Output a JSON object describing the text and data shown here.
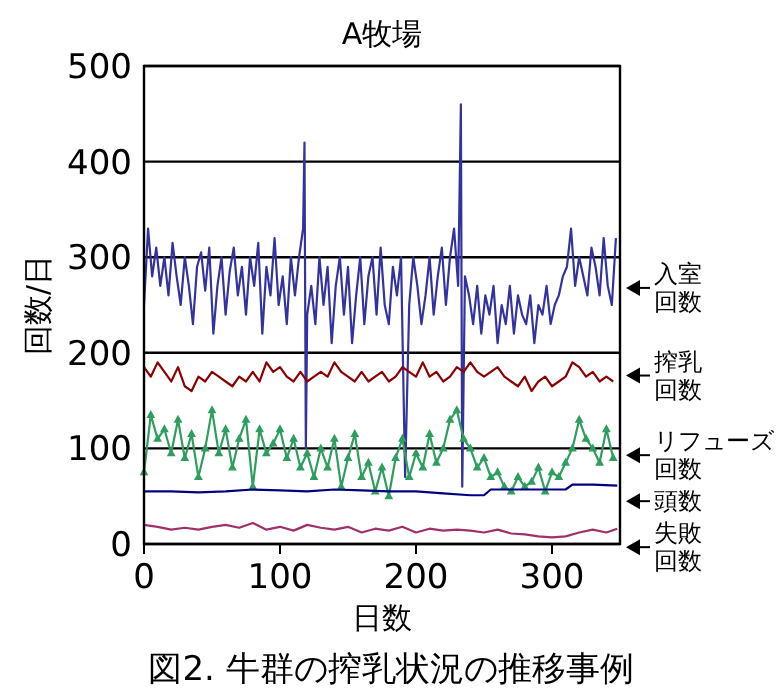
{
  "chart_data": {
    "type": "line",
    "title": "A牧場",
    "xlabel": "日数",
    "ylabel": "回数/日",
    "annotations": [
      "図2. 牛群の搾乳状況の推移事例"
    ],
    "xlim": [
      0,
      350
    ],
    "ylim": [
      0,
      500
    ],
    "xticks": [
      0,
      100,
      200,
      300
    ],
    "yticks": [
      0,
      100,
      200,
      300,
      400,
      500
    ],
    "grid": "y",
    "series": [
      {
        "name": "入室回数",
        "color": "#3333a0",
        "x": [
          0,
          3,
          6,
          9,
          12,
          15,
          18,
          21,
          24,
          27,
          30,
          33,
          36,
          39,
          42,
          45,
          48,
          51,
          54,
          57,
          60,
          63,
          66,
          69,
          72,
          75,
          78,
          81,
          84,
          87,
          90,
          93,
          96,
          99,
          102,
          105,
          108,
          111,
          114,
          117,
          118,
          119,
          120,
          123,
          126,
          129,
          132,
          135,
          138,
          141,
          144,
          147,
          150,
          153,
          156,
          159,
          162,
          165,
          168,
          171,
          174,
          177,
          180,
          183,
          186,
          189,
          192,
          195,
          198,
          201,
          204,
          207,
          210,
          213,
          216,
          219,
          222,
          225,
          228,
          231,
          233,
          234,
          236,
          239,
          242,
          245,
          248,
          251,
          254,
          257,
          260,
          263,
          266,
          269,
          272,
          275,
          278,
          281,
          284,
          287,
          290,
          293,
          296,
          299,
          302,
          305,
          308,
          311,
          314,
          317,
          320,
          323,
          326,
          329,
          332,
          335,
          338,
          341,
          344,
          347
        ],
        "values": [
          250,
          330,
          280,
          310,
          270,
          300,
          260,
          315,
          280,
          250,
          300,
          270,
          230,
          290,
          305,
          265,
          310,
          220,
          270,
          300,
          240,
          285,
          310,
          260,
          290,
          240,
          300,
          270,
          315,
          220,
          290,
          260,
          320,
          250,
          280,
          230,
          300,
          260,
          300,
          330,
          420,
          100,
          240,
          270,
          230,
          300,
          250,
          290,
          210,
          270,
          300,
          240,
          290,
          210,
          260,
          300,
          230,
          280,
          300,
          240,
          310,
          250,
          230,
          290,
          260,
          300,
          70,
          250,
          300,
          270,
          230,
          260,
          300,
          240,
          280,
          310,
          250,
          300,
          330,
          270,
          460,
          60,
          280,
          260,
          230,
          270,
          220,
          260,
          240,
          270,
          210,
          250,
          230,
          270,
          220,
          260,
          240,
          230,
          260,
          210,
          250,
          240,
          270,
          230,
          250,
          260,
          280,
          290,
          330,
          270,
          300,
          280,
          260,
          310,
          290,
          260,
          320,
          270,
          250,
          320
        ]
      },
      {
        "name": "搾乳回数",
        "color": "#8b0000",
        "x": [
          0,
          5,
          10,
          15,
          20,
          25,
          30,
          35,
          40,
          45,
          50,
          55,
          60,
          65,
          70,
          75,
          80,
          85,
          90,
          95,
          100,
          105,
          110,
          115,
          120,
          125,
          130,
          135,
          140,
          145,
          150,
          155,
          160,
          165,
          170,
          175,
          180,
          185,
          190,
          195,
          200,
          205,
          210,
          215,
          220,
          225,
          230,
          235,
          240,
          245,
          250,
          255,
          260,
          265,
          270,
          275,
          280,
          285,
          290,
          295,
          300,
          305,
          310,
          315,
          320,
          325,
          330,
          335,
          340,
          345
        ],
        "values": [
          185,
          175,
          190,
          180,
          170,
          185,
          165,
          160,
          175,
          170,
          180,
          175,
          170,
          165,
          175,
          170,
          180,
          170,
          190,
          180,
          185,
          175,
          170,
          180,
          170,
          175,
          180,
          175,
          190,
          180,
          175,
          170,
          180,
          170,
          175,
          180,
          170,
          175,
          185,
          180,
          175,
          190,
          175,
          180,
          170,
          175,
          185,
          180,
          190,
          180,
          175,
          180,
          185,
          175,
          170,
          165,
          175,
          160,
          170,
          175,
          165,
          170,
          175,
          190,
          185,
          175,
          180,
          170,
          175,
          170
        ]
      },
      {
        "name": "リフューズ回数",
        "color": "#2e9e5e",
        "marker": "triangle",
        "x": [
          0,
          5,
          10,
          15,
          20,
          25,
          30,
          35,
          40,
          45,
          50,
          55,
          60,
          65,
          70,
          75,
          80,
          85,
          90,
          95,
          100,
          105,
          110,
          115,
          120,
          125,
          130,
          135,
          140,
          145,
          150,
          155,
          160,
          165,
          170,
          175,
          180,
          185,
          190,
          195,
          200,
          205,
          210,
          215,
          220,
          225,
          230,
          235,
          240,
          245,
          250,
          255,
          260,
          265,
          270,
          275,
          280,
          285,
          290,
          295,
          300,
          305,
          310,
          315,
          320,
          325,
          330,
          335,
          340,
          345
        ],
        "values": [
          75,
          135,
          110,
          120,
          95,
          130,
          90,
          115,
          70,
          100,
          140,
          95,
          120,
          80,
          110,
          130,
          60,
          120,
          95,
          105,
          120,
          90,
          110,
          80,
          95,
          70,
          100,
          80,
          110,
          60,
          90,
          115,
          70,
          85,
          55,
          80,
          50,
          90,
          110,
          70,
          95,
          80,
          115,
          85,
          100,
          130,
          140,
          110,
          100,
          80,
          90,
          70,
          75,
          60,
          55,
          70,
          60,
          65,
          80,
          55,
          75,
          70,
          85,
          100,
          130,
          110,
          100,
          85,
          120,
          90
        ]
      },
      {
        "name": "頭数",
        "color": "#000080",
        "x": [
          0,
          20,
          40,
          60,
          80,
          100,
          120,
          140,
          160,
          180,
          200,
          220,
          240,
          250,
          255,
          270,
          290,
          310,
          315,
          330,
          348
        ],
        "values": [
          55,
          55,
          54,
          55,
          57,
          56,
          55,
          57,
          56,
          55,
          55,
          53,
          51,
          51,
          57,
          57,
          57,
          57,
          62,
          62,
          61
        ]
      },
      {
        "name": "失敗回数",
        "color": "#a0306a",
        "x": [
          0,
          10,
          20,
          30,
          40,
          50,
          60,
          70,
          80,
          90,
          100,
          110,
          120,
          130,
          140,
          150,
          160,
          170,
          180,
          190,
          200,
          210,
          220,
          230,
          240,
          250,
          260,
          270,
          280,
          290,
          300,
          310,
          320,
          330,
          340,
          348
        ],
        "values": [
          20,
          18,
          15,
          17,
          15,
          18,
          20,
          17,
          22,
          15,
          18,
          14,
          20,
          17,
          15,
          18,
          12,
          16,
          14,
          18,
          12,
          16,
          14,
          15,
          14,
          12,
          15,
          11,
          10,
          8,
          7,
          8,
          12,
          15,
          12,
          16
        ]
      }
    ]
  }
}
